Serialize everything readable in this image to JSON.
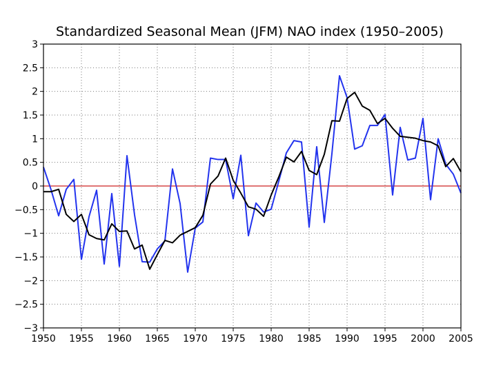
{
  "chart_data": {
    "type": "line",
    "title": "Standardized Seasonal Mean (JFM) NAO index (1950–2005)",
    "xlabel": "",
    "ylabel": "",
    "xlim": [
      1950,
      2005
    ],
    "ylim": [
      -3,
      3
    ],
    "xticks": [
      1950,
      1955,
      1960,
      1965,
      1970,
      1975,
      1980,
      1985,
      1990,
      1995,
      2000,
      2005
    ],
    "xtick_labels": [
      "1950",
      "1955",
      "1960",
      "1965",
      "1970",
      "1975",
      "1980",
      "1985",
      "1990",
      "1995",
      "2000",
      "2005"
    ],
    "yticks": [
      -3,
      -2.5,
      -2,
      -1.5,
      -1,
      -0.5,
      0,
      0.5,
      1,
      1.5,
      2,
      2.5,
      3
    ],
    "ytick_labels": [
      "−3",
      "−2.5",
      "−2",
      "−1.5",
      "−1",
      "−0.5",
      "0",
      "0.5",
      "1",
      "1.5",
      "2",
      "2.5",
      "3"
    ],
    "grid": true,
    "zero_line": 0,
    "x": [
      1950,
      1951,
      1952,
      1953,
      1954,
      1955,
      1956,
      1957,
      1958,
      1959,
      1960,
      1961,
      1962,
      1963,
      1964,
      1965,
      1966,
      1967,
      1968,
      1969,
      1970,
      1971,
      1972,
      1973,
      1974,
      1975,
      1976,
      1977,
      1978,
      1979,
      1980,
      1981,
      1982,
      1983,
      1984,
      1985,
      1986,
      1987,
      1988,
      1989,
      1990,
      1991,
      1992,
      1993,
      1994,
      1995,
      1996,
      1997,
      1998,
      1999,
      2000,
      2001,
      2002,
      2003,
      2004,
      2005
    ],
    "series": [
      {
        "color": "#2233ee",
        "values": [
          0.4,
          -0.08,
          -0.63,
          -0.07,
          0.14,
          -1.55,
          -0.65,
          -0.09,
          -1.65,
          -0.16,
          -1.7,
          0.64,
          -0.61,
          -1.6,
          -1.61,
          -1.33,
          -1.16,
          0.36,
          -0.37,
          -1.82,
          -0.89,
          -0.76,
          0.59,
          0.56,
          0.56,
          -0.27,
          0.65,
          -1.05,
          -0.36,
          -0.55,
          -0.49,
          0.1,
          0.7,
          0.96,
          0.93,
          -0.87,
          0.83,
          -0.77,
          0.68,
          2.33,
          1.87,
          0.78,
          0.85,
          1.28,
          1.28,
          1.51,
          -0.19,
          1.24,
          0.55,
          0.59,
          1.43,
          -0.29,
          1.0,
          0.46,
          0.25,
          -0.15
        ]
      },
      {
        "color": "#000000",
        "values": [
          -0.12,
          -0.12,
          -0.07,
          -0.6,
          -0.75,
          -0.6,
          -1.03,
          -1.11,
          -1.14,
          -0.8,
          -0.96,
          -0.95,
          -1.33,
          -1.25,
          -1.76,
          -1.45,
          -1.15,
          -1.2,
          -1.04,
          -0.96,
          -0.88,
          -0.62,
          0.04,
          0.21,
          0.59,
          0.12,
          -0.15,
          -0.44,
          -0.49,
          -0.64,
          -0.19,
          0.19,
          0.61,
          0.51,
          0.73,
          0.33,
          0.24,
          0.67,
          1.38,
          1.37,
          1.85,
          1.98,
          1.69,
          1.6,
          1.32,
          1.43,
          1.22,
          1.05,
          1.03,
          1.01,
          0.96,
          0.93,
          0.85,
          0.41,
          0.58,
          0.3
        ]
      }
    ]
  }
}
